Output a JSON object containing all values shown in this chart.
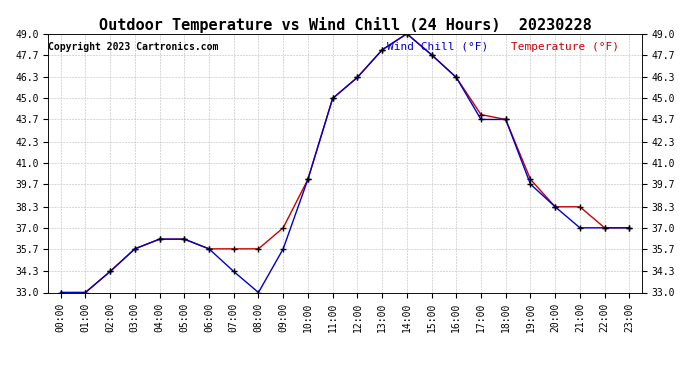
{
  "title": "Outdoor Temperature vs Wind Chill (24 Hours)  20230228",
  "copyright": "Copyright 2023 Cartronics.com",
  "legend_wind_chill": "Wind Chill (°F)",
  "legend_temperature": "Temperature (°F)",
  "hours": [
    "00:00",
    "01:00",
    "02:00",
    "03:00",
    "04:00",
    "05:00",
    "06:00",
    "07:00",
    "08:00",
    "09:00",
    "10:00",
    "11:00",
    "12:00",
    "13:00",
    "14:00",
    "15:00",
    "16:00",
    "17:00",
    "18:00",
    "19:00",
    "20:00",
    "21:00",
    "22:00",
    "23:00"
  ],
  "temperature": [
    33.0,
    33.0,
    34.3,
    35.7,
    36.3,
    36.3,
    35.7,
    35.7,
    35.7,
    37.0,
    40.0,
    45.0,
    46.3,
    48.0,
    49.0,
    47.7,
    46.3,
    44.0,
    43.7,
    40.0,
    38.3,
    38.3,
    37.0,
    37.0
  ],
  "wind_chill": [
    33.0,
    33.0,
    34.3,
    35.7,
    36.3,
    36.3,
    35.7,
    34.3,
    33.0,
    35.7,
    40.0,
    45.0,
    46.3,
    48.0,
    49.0,
    47.7,
    46.3,
    43.7,
    43.7,
    39.7,
    38.3,
    37.0,
    37.0,
    37.0
  ],
  "temp_color": "#cc0000",
  "wind_chill_color": "#0000cc",
  "ylim_min": 33.0,
  "ylim_max": 49.0,
  "yticks": [
    33.0,
    34.3,
    35.7,
    37.0,
    38.3,
    39.7,
    41.0,
    42.3,
    43.7,
    45.0,
    46.3,
    47.7,
    49.0
  ],
  "background_color": "#ffffff",
  "grid_color": "#bbbbbb",
  "title_fontsize": 11,
  "tick_fontsize": 7,
  "legend_fontsize": 8,
  "copyright_fontsize": 7
}
